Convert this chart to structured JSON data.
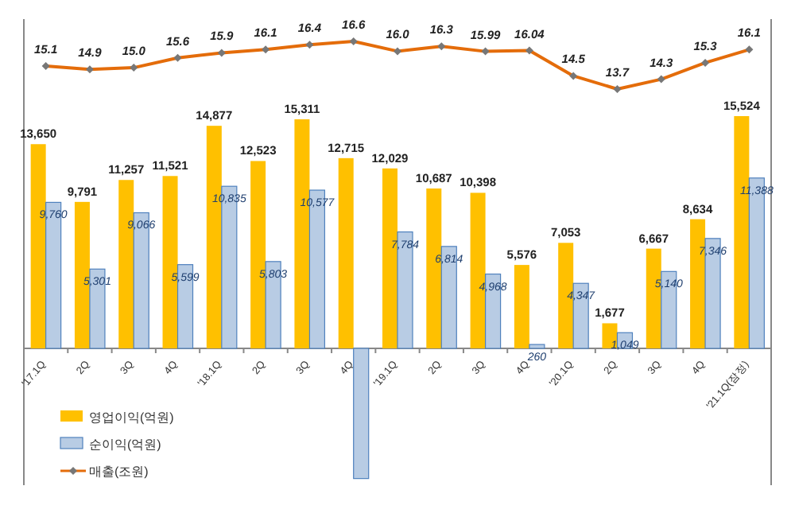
{
  "chart_data": [
    {
      "type": "bar",
      "categories": [
        "'17.1Q",
        "2Q",
        "3Q",
        "4Q",
        "'18.1Q",
        "2Q",
        "3Q",
        "4Q",
        "'19.1Q",
        "2Q",
        "3Q",
        "4Q",
        "'20.1Q",
        "2Q",
        "3Q",
        "4Q",
        "'21.1Q(잠정)"
      ],
      "series": [
        {
          "name": "영업이익(억원)",
          "color": "#ffc000",
          "values": [
            13650,
            9791,
            11257,
            11521,
            14877,
            12523,
            15311,
            12715,
            12029,
            10687,
            10398,
            5576,
            7053,
            1677,
            6667,
            8634,
            15524
          ],
          "value_labels": [
            "13,650",
            "9,791",
            "11,257",
            "11,521",
            "14,877",
            "12,523",
            "15,311",
            "12,715",
            "12,029",
            "10,687",
            "10,398",
            "5,576",
            "7,053",
            "1,677",
            "6,667",
            "8,634",
            "15,524"
          ]
        },
        {
          "name": "순이익(억원)",
          "color": "#b8cce4",
          "values": [
            9760,
            5301,
            9066,
            5599,
            10835,
            5803,
            10577,
            -8700,
            7784,
            6814,
            4968,
            260,
            4347,
            1049,
            5140,
            7346,
            11388
          ],
          "value_labels": [
            "9,760",
            "5,301",
            "9,066",
            "5,599",
            "10,835",
            "5,803",
            "10,577",
            null,
            "7,784",
            "6,814",
            "4,968",
            "260",
            "4,347",
            "1,049",
            "5,140",
            "7,346",
            "11,388"
          ]
        }
      ],
      "legend": "bottom left"
    },
    {
      "type": "line",
      "categories": [
        null,
        null,
        null,
        null,
        null,
        null,
        null,
        null,
        null,
        null,
        null,
        null,
        null,
        null,
        null,
        null,
        null
      ],
      "marker": "diamond",
      "legend": "bottom left",
      "series": [
        {
          "name": "매출(조원)",
          "color": "#e46c0a",
          "values": [
            15.1,
            14.9,
            15.0,
            15.6,
            15.9,
            16.1,
            16.4,
            16.6,
            16.0,
            16.3,
            15.99,
            16.04,
            14.5,
            13.7,
            14.3,
            15.3,
            16.1
          ],
          "value_labels": [
            "15.1",
            "14.9",
            "15.0",
            "15.6",
            "15.9",
            "16.1",
            "16.4",
            "16.6",
            "16.0",
            "16.3",
            "15.99",
            "16.04",
            "14.5",
            "13.7",
            "14.3",
            "15.3",
            "16.1"
          ]
        }
      ]
    }
  ]
}
